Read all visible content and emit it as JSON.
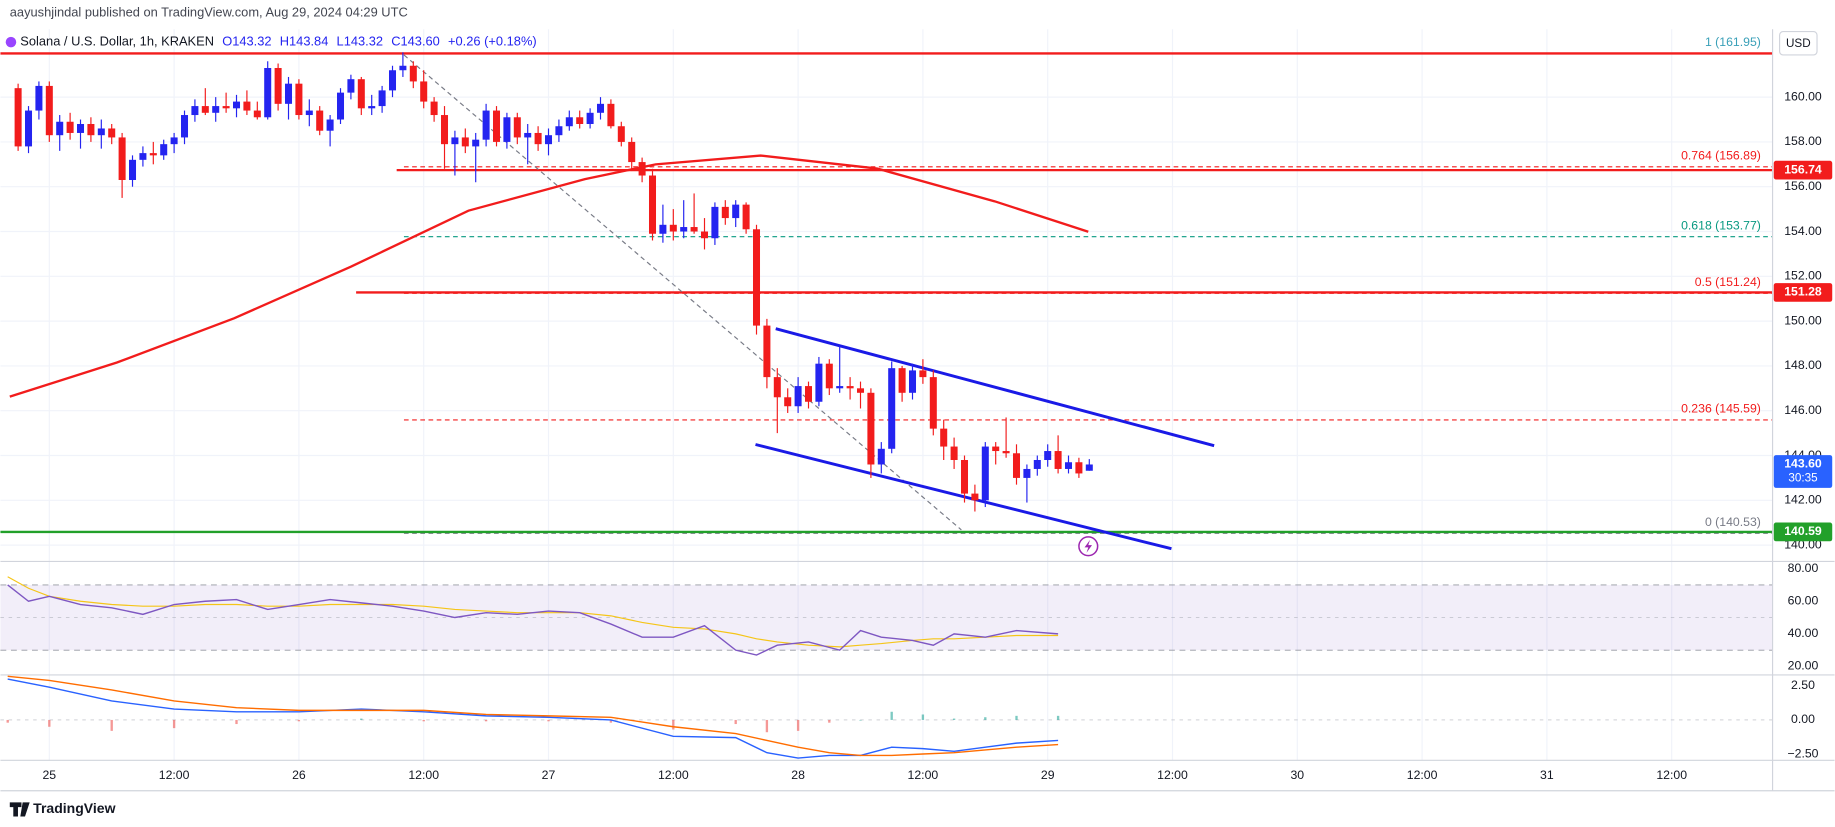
{
  "publisher": "aayushjindal published on TradingView.com, Aug 29, 2024 04:29 UTC",
  "watermark": "TradingView",
  "chart_data": {
    "type": "candlestick",
    "title": "Solana / U.S. Dollar, 1h, KRAKEN",
    "header_values": [
      "O143.32",
      "H143.84",
      "L143.32",
      "C143.60",
      "+0.26 (+0.18%)"
    ],
    "currency": "USD",
    "up_color": "#2424f0",
    "down_color": "#f21c1c",
    "ohlc": [
      [
        160.4,
        160.6,
        157.6,
        157.8
      ],
      [
        157.8,
        159.6,
        157.5,
        159.4
      ],
      [
        159.4,
        160.7,
        159.0,
        160.5
      ],
      [
        160.5,
        160.7,
        158.0,
        158.3
      ],
      [
        158.3,
        159.2,
        157.6,
        158.9
      ],
      [
        158.9,
        159.3,
        158.1,
        158.4
      ],
      [
        158.4,
        159.0,
        157.7,
        158.8
      ],
      [
        158.8,
        159.1,
        158.0,
        158.3
      ],
      [
        158.3,
        159.0,
        157.7,
        158.6
      ],
      [
        158.6,
        158.8,
        157.9,
        158.2
      ],
      [
        158.2,
        158.4,
        155.5,
        156.3
      ],
      [
        156.3,
        157.4,
        156.0,
        157.2
      ],
      [
        157.2,
        157.8,
        156.9,
        157.5
      ],
      [
        157.5,
        158.0,
        157.0,
        157.4
      ],
      [
        157.4,
        158.1,
        157.2,
        157.9
      ],
      [
        157.9,
        158.4,
        157.5,
        158.2
      ],
      [
        158.2,
        159.4,
        157.9,
        159.2
      ],
      [
        159.2,
        159.9,
        158.9,
        159.6
      ],
      [
        159.6,
        160.4,
        159.2,
        159.3
      ],
      [
        159.3,
        160.0,
        158.9,
        159.6
      ],
      [
        159.6,
        160.2,
        159.3,
        159.5
      ],
      [
        159.5,
        160.1,
        159.1,
        159.8
      ],
      [
        159.8,
        160.3,
        159.2,
        159.4
      ],
      [
        159.4,
        159.8,
        159.0,
        159.1
      ],
      [
        159.1,
        161.6,
        159.0,
        161.3
      ],
      [
        161.3,
        161.5,
        159.4,
        159.7
      ],
      [
        159.7,
        160.9,
        159.0,
        160.6
      ],
      [
        160.6,
        160.8,
        159.0,
        159.2
      ],
      [
        159.2,
        159.9,
        158.7,
        159.4
      ],
      [
        159.4,
        159.6,
        158.3,
        158.5
      ],
      [
        158.5,
        159.2,
        157.8,
        159.0
      ],
      [
        159.0,
        160.4,
        158.8,
        160.2
      ],
      [
        160.2,
        161.0,
        159.9,
        160.8
      ],
      [
        160.8,
        160.9,
        159.2,
        159.5
      ],
      [
        159.5,
        160.1,
        159.2,
        159.6
      ],
      [
        159.6,
        160.5,
        159.3,
        160.3
      ],
      [
        160.3,
        161.4,
        160.0,
        161.2
      ],
      [
        161.2,
        162.0,
        160.9,
        161.4
      ],
      [
        161.4,
        161.6,
        160.4,
        160.7
      ],
      [
        160.7,
        161.2,
        159.5,
        159.8
      ],
      [
        159.8,
        160.0,
        158.9,
        159.2
      ],
      [
        159.2,
        159.6,
        156.8,
        157.9
      ],
      [
        157.9,
        158.5,
        156.5,
        158.2
      ],
      [
        158.2,
        158.6,
        157.5,
        157.8
      ],
      [
        157.8,
        158.4,
        156.2,
        158.1
      ],
      [
        158.1,
        159.7,
        157.8,
        159.4
      ],
      [
        159.4,
        159.6,
        157.8,
        158.0
      ],
      [
        158.0,
        159.3,
        157.7,
        159.1
      ],
      [
        159.1,
        159.3,
        157.9,
        158.2
      ],
      [
        158.2,
        158.8,
        157.0,
        158.4
      ],
      [
        158.4,
        158.7,
        157.6,
        157.9
      ],
      [
        157.9,
        158.6,
        157.4,
        158.3
      ],
      [
        158.3,
        159.0,
        158.0,
        158.7
      ],
      [
        158.7,
        159.4,
        158.5,
        159.1
      ],
      [
        159.1,
        159.4,
        158.6,
        158.8
      ],
      [
        158.8,
        159.5,
        158.6,
        159.3
      ],
      [
        159.3,
        160.0,
        159.0,
        159.7
      ],
      [
        159.7,
        159.9,
        158.6,
        158.7
      ],
      [
        158.7,
        158.9,
        157.8,
        158.0
      ],
      [
        158.0,
        158.2,
        156.7,
        157.1
      ],
      [
        157.1,
        157.3,
        156.2,
        156.5
      ],
      [
        156.5,
        156.8,
        153.6,
        153.9
      ],
      [
        153.9,
        155.2,
        153.5,
        154.3
      ],
      [
        154.3,
        155.0,
        153.6,
        154.0
      ],
      [
        154.0,
        155.4,
        153.7,
        154.2
      ],
      [
        154.2,
        155.7,
        153.9,
        154.0
      ],
      [
        154.0,
        154.6,
        153.2,
        153.7
      ],
      [
        153.7,
        155.3,
        153.4,
        155.1
      ],
      [
        155.1,
        155.4,
        154.3,
        154.6
      ],
      [
        154.6,
        155.4,
        154.2,
        155.2
      ],
      [
        155.2,
        155.3,
        153.9,
        154.1
      ],
      [
        154.1,
        154.3,
        149.4,
        149.8
      ],
      [
        149.8,
        150.1,
        147.0,
        147.5
      ],
      [
        147.5,
        147.9,
        145.0,
        146.6
      ],
      [
        146.6,
        147.0,
        145.9,
        146.2
      ],
      [
        146.2,
        147.5,
        145.9,
        147.1
      ],
      [
        147.1,
        147.3,
        146.1,
        146.4
      ],
      [
        146.4,
        148.4,
        146.2,
        148.1
      ],
      [
        148.1,
        148.3,
        146.7,
        147.0
      ],
      [
        147.0,
        148.9,
        146.8,
        147.1
      ],
      [
        147.1,
        147.5,
        146.5,
        147.0
      ],
      [
        147.0,
        147.3,
        146.1,
        146.8
      ],
      [
        146.8,
        147.0,
        143.0,
        143.6
      ],
      [
        143.6,
        144.6,
        143.2,
        144.3
      ],
      [
        144.3,
        148.2,
        144.1,
        147.9
      ],
      [
        147.9,
        148.0,
        146.4,
        146.8
      ],
      [
        146.8,
        148.1,
        146.5,
        147.8
      ],
      [
        147.8,
        148.3,
        147.2,
        147.5
      ],
      [
        147.5,
        147.8,
        144.9,
        145.2
      ],
      [
        145.2,
        145.6,
        143.8,
        144.4
      ],
      [
        144.4,
        144.8,
        143.4,
        143.8
      ],
      [
        143.8,
        144.0,
        141.9,
        142.3
      ],
      [
        142.3,
        142.7,
        141.5,
        142.0
      ],
      [
        142.0,
        144.6,
        141.7,
        144.4
      ],
      [
        144.4,
        144.6,
        143.6,
        144.2
      ],
      [
        144.2,
        145.7,
        143.9,
        144.1
      ],
      [
        144.1,
        144.5,
        142.7,
        143.0
      ],
      [
        143.0,
        143.6,
        141.9,
        143.4
      ],
      [
        143.4,
        144.0,
        143.1,
        143.8
      ],
      [
        143.8,
        144.5,
        143.5,
        144.2
      ],
      [
        144.2,
        144.9,
        143.2,
        143.4
      ],
      [
        143.4,
        144.0,
        143.2,
        143.7
      ],
      [
        143.7,
        143.9,
        143.0,
        143.2
      ],
      [
        143.32,
        143.84,
        143.32,
        143.6
      ]
    ],
    "xlim": [
      -1.7,
      168.7
    ],
    "xticks": [
      {
        "value": 3,
        "label": "25"
      },
      {
        "value": 15,
        "label": "12:00"
      },
      {
        "value": 27,
        "label": "26"
      },
      {
        "value": 39,
        "label": "12:00"
      },
      {
        "value": 51,
        "label": "27"
      },
      {
        "value": 63,
        "label": "12:00"
      },
      {
        "value": 75,
        "label": "28"
      },
      {
        "value": 87,
        "label": "12:00"
      },
      {
        "value": 99,
        "label": "29"
      },
      {
        "value": 111,
        "label": "12:00"
      },
      {
        "value": 123,
        "label": "30"
      },
      {
        "value": 135,
        "label": "12:00"
      },
      {
        "value": 147,
        "label": "31"
      },
      {
        "value": 159,
        "label": "12:00"
      }
    ],
    "ylim": [
      139.27,
      163.03
    ],
    "yticks": [
      {
        "value": 140,
        "label": "140.00"
      },
      {
        "value": 142,
        "label": "142.00"
      },
      {
        "value": 144,
        "label": "144.00"
      },
      {
        "value": 146,
        "label": "146.00"
      },
      {
        "value": 148,
        "label": "148.00"
      },
      {
        "value": 150,
        "label": "150.00"
      },
      {
        "value": 152,
        "label": "152.00"
      },
      {
        "value": 154,
        "label": "154.00"
      },
      {
        "value": 156,
        "label": "156.00"
      },
      {
        "value": 158,
        "label": "158.00"
      },
      {
        "value": 160,
        "label": "160.00"
      }
    ],
    "grid": true,
    "moving_average": {
      "color": "#f21c1c",
      "x": [
        -0.8,
        9.5,
        20.8,
        32.0,
        43.3,
        54.5,
        61.3,
        71.4,
        82.6,
        93.9,
        102.9
      ],
      "values": [
        146.63,
        148.15,
        150.13,
        152.43,
        154.93,
        156.34,
        157.0,
        157.39,
        156.81,
        155.35,
        153.99
      ]
    },
    "hlines": [
      {
        "value": 161.95,
        "from": -1.7,
        "color": "#f21c1c"
      },
      {
        "value": 156.74,
        "from": 36.4,
        "color": "#f21c1c"
      },
      {
        "value": 151.28,
        "from": 32.5,
        "color": "#f21c1c"
      },
      {
        "value": 140.59,
        "from": -1.7,
        "color": "#22a02a"
      }
    ],
    "price_tags": [
      {
        "value": 156.74,
        "color": "#f21c1c"
      },
      {
        "value": 151.28,
        "color": "#f21c1c"
      },
      {
        "value": 143.6,
        "label": "143.60",
        "color": "#2962ff",
        "countdown": "30:35"
      },
      {
        "value": 140.59,
        "color": "#22a02a"
      }
    ],
    "fib_levels": [
      {
        "label": "1 (161.95)",
        "value": 161.95,
        "color": "#3aa0b8"
      },
      {
        "label": "0.764 (156.89)",
        "value": 156.89,
        "color": "#f21c1c"
      },
      {
        "label": "0.618 (153.77)",
        "value": 153.77,
        "color": "#089981"
      },
      {
        "label": "0.5 (151.24)",
        "value": 151.24,
        "color": "#f21c1c"
      },
      {
        "label": "0.236 (145.59)",
        "value": 145.59,
        "color": "#f21c1c"
      },
      {
        "label": "0 (140.53)",
        "value": 140.53,
        "color": "#787b86"
      }
    ],
    "trend_lines": [
      {
        "color": "#787b86",
        "dashed": true,
        "x": [
          37.1,
          90.7
        ],
        "values": [
          161.88,
          140.68
        ]
      },
      {
        "color": "#1a1ae6",
        "dashed": false,
        "x": [
          72.85,
          115.0
        ],
        "values": [
          149.66,
          144.44
        ]
      },
      {
        "color": "#1a1ae6",
        "dashed": false,
        "x": [
          70.9,
          110.9
        ],
        "values": [
          144.49,
          139.84
        ]
      }
    ],
    "rsi": {
      "color": "#7e57c2",
      "ma_color": "#f5c518",
      "band": [
        30,
        70
      ],
      "ylim": [
        14.8,
        84.4
      ],
      "yticks": [
        {
          "value": 20,
          "label": "20.00"
        },
        {
          "value": 40,
          "label": "40.00"
        },
        {
          "value": 60,
          "label": "60.00"
        },
        {
          "value": 80,
          "label": "80.00"
        }
      ],
      "x": [
        -1,
        1,
        3,
        6,
        9,
        12,
        15,
        18,
        21,
        24,
        27,
        30,
        33,
        36,
        39,
        42,
        45,
        48,
        51,
        54,
        57,
        60,
        63,
        66,
        69,
        71,
        73,
        76,
        79,
        81,
        83,
        86,
        88,
        90,
        93,
        96,
        100
      ],
      "values": [
        70,
        60,
        63,
        58,
        56,
        52,
        58,
        60,
        61,
        55,
        58,
        61,
        59,
        57,
        54,
        50,
        53,
        52,
        54,
        53,
        46,
        38,
        38,
        45,
        30,
        27,
        33,
        35,
        30,
        42,
        38,
        36,
        33,
        40,
        38,
        42,
        40
      ],
      "ma_values": [
        75,
        68,
        63,
        60,
        58,
        57,
        57,
        58,
        58,
        57,
        57,
        58,
        58,
        58,
        57,
        55,
        54,
        53,
        53,
        53,
        51,
        47,
        44,
        43,
        40,
        37,
        35,
        33,
        32,
        33,
        34,
        36,
        37,
        37,
        38,
        39,
        39
      ]
    },
    "macd": {
      "macd_color": "#2962ff",
      "signal_color": "#ff6d00",
      "up_color": "#26a69a",
      "down_color": "#ef5350",
      "ylim": [
        -2.96,
        3.3
      ],
      "yticks": [
        {
          "value": -2.5,
          "label": "−2.50"
        },
        {
          "value": 0,
          "label": "0.00"
        },
        {
          "value": 2.5,
          "label": "2.50"
        }
      ],
      "x": [
        -1,
        3,
        9,
        15,
        21,
        27,
        33,
        39,
        45,
        51,
        57,
        63,
        69,
        72,
        75,
        78,
        81,
        84,
        87,
        90,
        93,
        96,
        100
      ],
      "macd": [
        3.0,
        2.4,
        1.4,
        0.8,
        0.6,
        0.6,
        0.8,
        0.6,
        0.3,
        0.2,
        0.0,
        -1.2,
        -1.3,
        -2.4,
        -2.8,
        -2.6,
        -2.6,
        -2.0,
        -2.1,
        -2.3,
        -2.0,
        -1.7,
        -1.5
      ],
      "signal": [
        3.2,
        2.9,
        2.2,
        1.4,
        0.9,
        0.7,
        0.7,
        0.7,
        0.4,
        0.3,
        0.2,
        -0.5,
        -1.0,
        -1.5,
        -2.0,
        -2.4,
        -2.6,
        -2.6,
        -2.5,
        -2.4,
        -2.2,
        -2.0,
        -1.8
      ],
      "histogram": [
        -0.2,
        -0.5,
        -0.8,
        -0.6,
        -0.3,
        -0.1,
        0.1,
        -0.1,
        -0.1,
        -0.1,
        -0.2,
        -0.7,
        -0.3,
        -0.9,
        -0.8,
        -0.2,
        0,
        0.6,
        0.4,
        0.1,
        0.2,
        0.3,
        0.3
      ]
    }
  }
}
